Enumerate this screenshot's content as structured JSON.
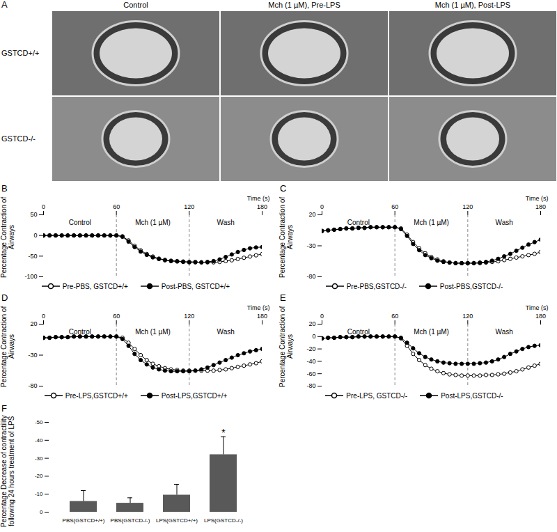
{
  "panel_a": {
    "panel": "A",
    "columns": [
      "Control",
      "Mch (1 µM), Pre-LPS",
      "Mch (1 µM), Post-LPS"
    ],
    "rows": [
      "GSTCD+/+",
      "GSTCD-/-"
    ]
  },
  "chart_data": [
    {
      "panel": "B",
      "type": "line",
      "xlabel": "Time (s)",
      "ylabel": "Percentage Contraction of Airways",
      "x": [
        0,
        5,
        10,
        15,
        20,
        25,
        30,
        35,
        40,
        45,
        50,
        55,
        60,
        65,
        70,
        75,
        80,
        85,
        90,
        95,
        100,
        105,
        110,
        115,
        120,
        125,
        130,
        135,
        140,
        145,
        150,
        155,
        160,
        165,
        170,
        175,
        180
      ],
      "xlim": [
        0,
        180
      ],
      "xticks": [
        0,
        60,
        120,
        180
      ],
      "ylim": [
        -100,
        50
      ],
      "yticks": [
        -100,
        -50,
        0,
        50
      ],
      "phases": [
        {
          "label": "Control",
          "start": 0,
          "end": 60
        },
        {
          "label": "Mch (1 µM)",
          "start": 60,
          "end": 120
        },
        {
          "label": "Wash",
          "start": 120,
          "end": 180
        }
      ],
      "series": [
        {
          "name": "Pre-PBS, GSTCD+/+",
          "color": "#000000",
          "marker": "open circle",
          "values": [
            0,
            0,
            0,
            0,
            0,
            0,
            0,
            0,
            0,
            0,
            0,
            0,
            0,
            -2,
            -12,
            -25,
            -36,
            -45,
            -51,
            -56,
            -59,
            -61,
            -62,
            -63,
            -64,
            -64,
            -65,
            -65,
            -65,
            -64,
            -62,
            -60,
            -57,
            -54,
            -51,
            -48,
            -45
          ]
        },
        {
          "name": "Post-PBS, GSTCD+/+",
          "color": "#000000",
          "marker": "circle",
          "values": [
            0,
            0,
            0,
            0,
            0,
            0,
            0,
            0,
            0,
            0,
            0,
            0,
            0,
            -3,
            -15,
            -28,
            -39,
            -47,
            -53,
            -57,
            -60,
            -62,
            -63,
            -64,
            -65,
            -65,
            -65,
            -64,
            -62,
            -58,
            -52,
            -46,
            -40,
            -35,
            -31,
            -29,
            -28
          ]
        }
      ]
    },
    {
      "panel": "C",
      "type": "line",
      "xlabel": "Time (s)",
      "ylabel": "Percentage Contraction of Airways",
      "x": [
        0,
        5,
        10,
        15,
        20,
        25,
        30,
        35,
        40,
        45,
        50,
        55,
        60,
        65,
        70,
        75,
        80,
        85,
        90,
        95,
        100,
        105,
        110,
        115,
        120,
        125,
        130,
        135,
        140,
        145,
        150,
        155,
        160,
        165,
        170,
        175,
        180
      ],
      "xlim": [
        0,
        180
      ],
      "xticks": [
        0,
        60,
        120,
        180
      ],
      "ylim": [
        -80,
        20
      ],
      "yticks": [
        -80,
        -30,
        20
      ],
      "phases": [
        {
          "label": "Control",
          "start": 0,
          "end": 60
        },
        {
          "label": "Mch (1 µM)",
          "start": 60,
          "end": 120
        },
        {
          "label": "Wash",
          "start": 120,
          "end": 180
        }
      ],
      "series": [
        {
          "name": "Pre-PBS,GSTCD-/-",
          "color": "#000000",
          "marker": "open circle",
          "values": [
            -6,
            -5,
            -4,
            -3,
            -2,
            -2,
            -1,
            -1,
            0,
            0,
            0,
            0,
            0,
            -2,
            -12,
            -24,
            -34,
            -42,
            -48,
            -52,
            -55,
            -57,
            -58,
            -58,
            -58,
            -58,
            -58,
            -57,
            -56,
            -55,
            -53,
            -51,
            -49,
            -47,
            -45,
            -43,
            -40
          ]
        },
        {
          "name": "Post-PBS,GSTCD-/-",
          "color": "#000000",
          "marker": "circle",
          "values": [
            -6,
            -5,
            -4,
            -3,
            -2,
            -2,
            -1,
            -1,
            0,
            0,
            0,
            0,
            0,
            -3,
            -14,
            -27,
            -37,
            -45,
            -50,
            -54,
            -56,
            -57,
            -58,
            -58,
            -58,
            -58,
            -57,
            -56,
            -54,
            -51,
            -47,
            -43,
            -38,
            -33,
            -28,
            -24,
            -20
          ]
        }
      ]
    },
    {
      "panel": "D",
      "type": "line",
      "xlabel": "Time (s)",
      "ylabel": "Percentage Contraction of Airways",
      "x": [
        0,
        5,
        10,
        15,
        20,
        25,
        30,
        35,
        40,
        45,
        50,
        55,
        60,
        65,
        70,
        75,
        80,
        85,
        90,
        95,
        100,
        105,
        110,
        115,
        120,
        125,
        130,
        135,
        140,
        145,
        150,
        155,
        160,
        165,
        170,
        175,
        180
      ],
      "xlim": [
        0,
        180
      ],
      "xticks": [
        0,
        60,
        120,
        180
      ],
      "ylim": [
        -80,
        20
      ],
      "yticks": [
        -80,
        -30,
        20
      ],
      "phases": [
        {
          "label": "Control",
          "start": 0,
          "end": 60
        },
        {
          "label": "Mch (1 µM)",
          "start": 60,
          "end": 120
        },
        {
          "label": "Wash",
          "start": 120,
          "end": 180
        }
      ],
      "series": [
        {
          "name": "Pre-LPS,GSTCD+/+",
          "color": "#000000",
          "marker": "open circle",
          "values": [
            -2,
            -2,
            -1,
            -1,
            -1,
            0,
            0,
            0,
            0,
            0,
            0,
            0,
            0,
            -2,
            -10,
            -20,
            -30,
            -38,
            -44,
            -48,
            -51,
            -53,
            -54,
            -55,
            -55,
            -55,
            -55,
            -55,
            -55,
            -54,
            -53,
            -51,
            -49,
            -47,
            -45,
            -43,
            -40
          ]
        },
        {
          "name": "Post-LPS,GSTCD+/+",
          "color": "#000000",
          "marker": "circle",
          "values": [
            -2,
            -2,
            -1,
            -1,
            -1,
            0,
            0,
            0,
            0,
            0,
            0,
            0,
            0,
            -4,
            -15,
            -28,
            -38,
            -45,
            -50,
            -53,
            -55,
            -56,
            -56,
            -56,
            -56,
            -55,
            -53,
            -50,
            -46,
            -42,
            -38,
            -34,
            -30,
            -27,
            -24,
            -22,
            -20
          ]
        }
      ]
    },
    {
      "panel": "E",
      "type": "line",
      "xlabel": "Time (s)",
      "ylabel": "Percentage Contraction of Airways",
      "x": [
        0,
        5,
        10,
        15,
        20,
        25,
        30,
        35,
        40,
        45,
        50,
        55,
        60,
        65,
        70,
        75,
        80,
        85,
        90,
        95,
        100,
        105,
        110,
        115,
        120,
        125,
        130,
        135,
        140,
        145,
        150,
        155,
        160,
        165,
        170,
        175,
        180
      ],
      "xlim": [
        0,
        180
      ],
      "xticks": [
        0,
        60,
        120,
        180
      ],
      "ylim": [
        -80,
        20
      ],
      "yticks": [
        -80,
        -60,
        -40,
        -20,
        0,
        20
      ],
      "phases": [
        {
          "label": "Control",
          "start": 0,
          "end": 60
        },
        {
          "label": "Mch (1 µM)",
          "start": 60,
          "end": 120
        },
        {
          "label": "Wash",
          "start": 120,
          "end": 180
        }
      ],
      "series": [
        {
          "name": "Pre-LPS, GSTCD-/-",
          "color": "#000000",
          "marker": "open circle",
          "values": [
            -3,
            -2,
            -2,
            -1,
            -1,
            -1,
            0,
            0,
            0,
            0,
            0,
            0,
            0,
            -3,
            -15,
            -28,
            -38,
            -46,
            -52,
            -56,
            -59,
            -61,
            -62,
            -63,
            -63,
            -63,
            -63,
            -62,
            -62,
            -61,
            -60,
            -58,
            -56,
            -53,
            -50,
            -47,
            -44
          ]
        },
        {
          "name": "Post-LPS,GSTCD-/-",
          "color": "#000000",
          "marker": "circle",
          "values": [
            -3,
            -2,
            -2,
            -1,
            -1,
            -1,
            0,
            0,
            0,
            0,
            0,
            0,
            0,
            -2,
            -10,
            -19,
            -27,
            -33,
            -37,
            -40,
            -42,
            -43,
            -44,
            -44,
            -44,
            -44,
            -43,
            -42,
            -40,
            -37,
            -33,
            -28,
            -24,
            -20,
            -17,
            -15,
            -14
          ]
        }
      ]
    },
    {
      "panel": "F",
      "type": "bar",
      "ylabel": "Percentage Decrease of contractility following 24 hours treatment of LPS",
      "categories": [
        "PBS(GSTCD+/+)",
        "PBS(GSTCD-/-)",
        "LPS(GSTCD+/+)",
        "LPS(GSTCD-/-)"
      ],
      "values": [
        -6,
        -5,
        -9.5,
        -32
      ],
      "errors": [
        6,
        3,
        6,
        10
      ],
      "color": "#595959",
      "ylim": [
        0,
        -50
      ],
      "yticks": [
        0,
        -10,
        -20,
        -30,
        -40,
        -50
      ],
      "annotations": [
        {
          "category": "LPS(GSTCD-/-)",
          "text": "*"
        }
      ]
    }
  ]
}
